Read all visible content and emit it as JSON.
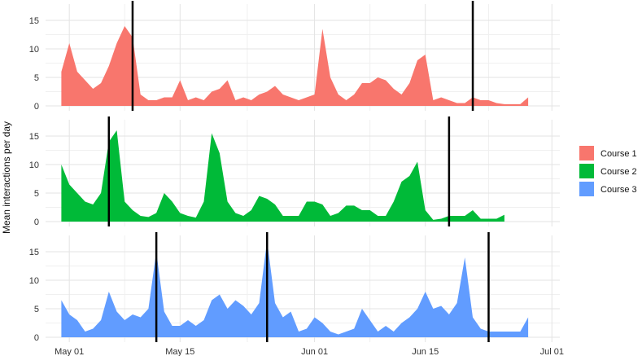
{
  "chart_data": {
    "type": "area",
    "ylabel": "Mean interactions per day",
    "xlabel": "",
    "x_ticks": [
      "May 01",
      "May 15",
      "Jun 01",
      "Jun 15",
      "Jul 01"
    ],
    "y_ticks": [
      0,
      5,
      10,
      15
    ],
    "ylim": [
      0,
      17
    ],
    "xlim_days": [
      -3,
      62
    ],
    "x_tick_days": [
      0,
      14,
      31,
      45,
      61
    ],
    "grid": true,
    "legend_position": "right",
    "series": [
      {
        "name": "Course 1",
        "color": "#F8766D",
        "vlines_days": [
          8,
          51
        ],
        "points": [
          [
            -1,
            6
          ],
          [
            0,
            11
          ],
          [
            1,
            6
          ],
          [
            2,
            4.5
          ],
          [
            3,
            3
          ],
          [
            4,
            4
          ],
          [
            5,
            7
          ],
          [
            6,
            11
          ],
          [
            7,
            14
          ],
          [
            8,
            12
          ],
          [
            9,
            2
          ],
          [
            10,
            1
          ],
          [
            11,
            1
          ],
          [
            12,
            1.5
          ],
          [
            13,
            1.5
          ],
          [
            14,
            4.5
          ],
          [
            15,
            1
          ],
          [
            16,
            1.5
          ],
          [
            17,
            1
          ],
          [
            18,
            2.5
          ],
          [
            19,
            3
          ],
          [
            20,
            4.5
          ],
          [
            21,
            1
          ],
          [
            22,
            1.5
          ],
          [
            23,
            1
          ],
          [
            24,
            2
          ],
          [
            25,
            2.5
          ],
          [
            26,
            3.5
          ],
          [
            27,
            2
          ],
          [
            28,
            1.5
          ],
          [
            29,
            1
          ],
          [
            30,
            1.5
          ],
          [
            31,
            2
          ],
          [
            32,
            13.5
          ],
          [
            33,
            5
          ],
          [
            34,
            2
          ],
          [
            35,
            1
          ],
          [
            36,
            2
          ],
          [
            37,
            4
          ],
          [
            38,
            4
          ],
          [
            39,
            5
          ],
          [
            40,
            4.5
          ],
          [
            41,
            3
          ],
          [
            42,
            2
          ],
          [
            43,
            4
          ],
          [
            44,
            8
          ],
          [
            45,
            9
          ],
          [
            46,
            1
          ],
          [
            47,
            1.5
          ],
          [
            48,
            1
          ],
          [
            49,
            0.5
          ],
          [
            50,
            0.5
          ],
          [
            51,
            1.5
          ],
          [
            52,
            1
          ],
          [
            53,
            1
          ],
          [
            54,
            0.5
          ],
          [
            55,
            0.3
          ],
          [
            56,
            0.3
          ],
          [
            57,
            0.3
          ],
          [
            58,
            1.5
          ]
        ]
      },
      {
        "name": "Course 2",
        "color": "#00BA38",
        "vlines_days": [
          5,
          48
        ],
        "points": [
          [
            -1,
            10
          ],
          [
            0,
            6.5
          ],
          [
            1,
            5
          ],
          [
            2,
            3.5
          ],
          [
            3,
            3
          ],
          [
            4,
            5
          ],
          [
            5,
            14
          ],
          [
            6,
            16
          ],
          [
            7,
            3.5
          ],
          [
            8,
            2
          ],
          [
            9,
            1
          ],
          [
            10,
            0.8
          ],
          [
            11,
            1.5
          ],
          [
            12,
            5
          ],
          [
            13,
            3.5
          ],
          [
            14,
            1.5
          ],
          [
            15,
            1
          ],
          [
            16,
            0.7
          ],
          [
            17,
            3.5
          ],
          [
            18,
            15.5
          ],
          [
            19,
            12
          ],
          [
            20,
            3.5
          ],
          [
            21,
            1.5
          ],
          [
            22,
            1
          ],
          [
            23,
            2
          ],
          [
            24,
            4.5
          ],
          [
            25,
            4
          ],
          [
            26,
            3
          ],
          [
            27,
            1
          ],
          [
            28,
            1
          ],
          [
            29,
            1
          ],
          [
            30,
            3.5
          ],
          [
            31,
            3.5
          ],
          [
            32,
            3
          ],
          [
            33,
            1
          ],
          [
            34,
            1.5
          ],
          [
            35,
            2.8
          ],
          [
            36,
            2.8
          ],
          [
            37,
            2
          ],
          [
            38,
            2
          ],
          [
            39,
            1
          ],
          [
            40,
            1
          ],
          [
            41,
            3.5
          ],
          [
            42,
            7
          ],
          [
            43,
            8
          ],
          [
            44,
            10.5
          ],
          [
            45,
            2
          ],
          [
            46,
            0.3
          ],
          [
            47,
            0.5
          ],
          [
            48,
            1
          ],
          [
            49,
            1
          ],
          [
            50,
            1
          ],
          [
            51,
            2
          ],
          [
            52,
            0.5
          ],
          [
            53,
            0.5
          ],
          [
            54,
            0.5
          ],
          [
            55,
            1.2
          ]
        ]
      },
      {
        "name": "Course 3",
        "color": "#619CFF",
        "vlines_days": [
          11,
          25,
          53
        ],
        "points": [
          [
            -1,
            6.5
          ],
          [
            0,
            4
          ],
          [
            1,
            3
          ],
          [
            2,
            1
          ],
          [
            3,
            1.5
          ],
          [
            4,
            3
          ],
          [
            5,
            8
          ],
          [
            6,
            4.5
          ],
          [
            7,
            3
          ],
          [
            8,
            4
          ],
          [
            9,
            3.5
          ],
          [
            10,
            5
          ],
          [
            11,
            15
          ],
          [
            12,
            4.5
          ],
          [
            13,
            2
          ],
          [
            14,
            2
          ],
          [
            15,
            3
          ],
          [
            16,
            2
          ],
          [
            17,
            3
          ],
          [
            18,
            6.5
          ],
          [
            19,
            7.5
          ],
          [
            20,
            5
          ],
          [
            21,
            6.5
          ],
          [
            22,
            5.5
          ],
          [
            23,
            4
          ],
          [
            24,
            6
          ],
          [
            25,
            17
          ],
          [
            26,
            6
          ],
          [
            27,
            3.5
          ],
          [
            28,
            4.5
          ],
          [
            29,
            1
          ],
          [
            30,
            1.5
          ],
          [
            31,
            3.5
          ],
          [
            32,
            2.5
          ],
          [
            33,
            1
          ],
          [
            34,
            0.5
          ],
          [
            35,
            1
          ],
          [
            36,
            1.5
          ],
          [
            37,
            5
          ],
          [
            38,
            3
          ],
          [
            39,
            1
          ],
          [
            40,
            2
          ],
          [
            41,
            1
          ],
          [
            42,
            2.5
          ],
          [
            43,
            3.5
          ],
          [
            44,
            5
          ],
          [
            45,
            8
          ],
          [
            46,
            5
          ],
          [
            47,
            5.5
          ],
          [
            48,
            4
          ],
          [
            49,
            6
          ],
          [
            50,
            14
          ],
          [
            51,
            3.5
          ],
          [
            52,
            1.5
          ],
          [
            53,
            1
          ],
          [
            54,
            1
          ],
          [
            55,
            1
          ],
          [
            56,
            1
          ],
          [
            57,
            1
          ],
          [
            58,
            3.5
          ]
        ]
      }
    ]
  }
}
